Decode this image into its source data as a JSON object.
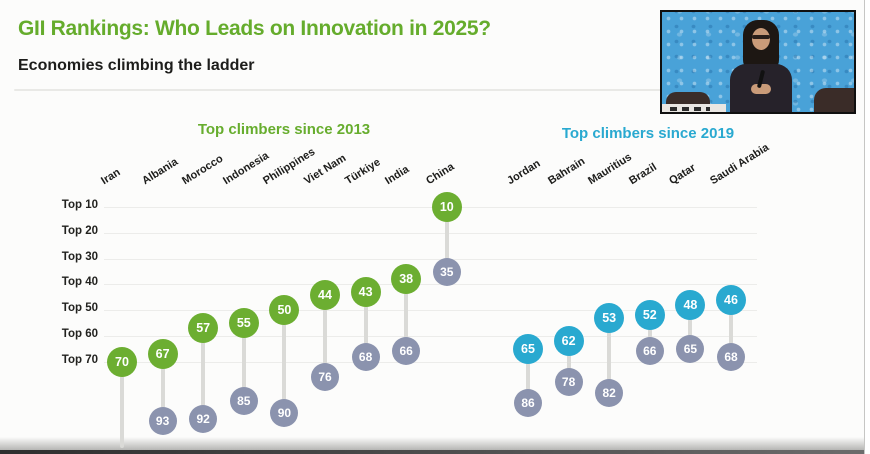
{
  "slide": {
    "title": "GII Rankings: Who Leads on Innovation in 2025?",
    "subtitle": "Economies climbing the ladder"
  },
  "colors": {
    "title_green": "#65ac2c",
    "climbers_2013_green": "#6cae31",
    "climbers_2019_cyan": "#29a9d0",
    "previous_rank_gray": "#8b93ae",
    "connector_gray": "#dadad7"
  },
  "chart_data": {
    "type": "scatter",
    "subtype": "dumbbell-dot-ranking",
    "title": "GII Rankings: Who Leads on Innovation in 2025?",
    "subtitle": "Economies climbing the ladder",
    "y_axis": {
      "tick_labels": [
        "Top 10",
        "Top 20",
        "Top 30",
        "Top 40",
        "Top 50",
        "Top 60",
        "Top 70"
      ],
      "range": [
        10,
        70
      ],
      "direction": "rank-lower-is-better",
      "grid": true
    },
    "groups": [
      {
        "id": "since2013",
        "label": "Top climbers since 2013",
        "color": "#6cae31"
      },
      {
        "id": "since2019",
        "label": "Top climbers since 2019",
        "color": "#29a9d0"
      }
    ],
    "series": [
      {
        "country": "Iran",
        "group": "since2013",
        "current_rank": 70,
        "previous_rank": null
      },
      {
        "country": "Albania",
        "group": "since2013",
        "current_rank": 67,
        "previous_rank": 93
      },
      {
        "country": "Morocco",
        "group": "since2013",
        "current_rank": 57,
        "previous_rank": 92
      },
      {
        "country": "Indonesia",
        "group": "since2013",
        "current_rank": 55,
        "previous_rank": 85
      },
      {
        "country": "Philippines",
        "group": "since2013",
        "current_rank": 50,
        "previous_rank": 90
      },
      {
        "country": "Viet Nam",
        "group": "since2013",
        "current_rank": 44,
        "previous_rank": 76
      },
      {
        "country": "Türkiye",
        "group": "since2013",
        "current_rank": 43,
        "previous_rank": 68
      },
      {
        "country": "India",
        "group": "since2013",
        "current_rank": 38,
        "previous_rank": 66
      },
      {
        "country": "China",
        "group": "since2013",
        "current_rank": 10,
        "previous_rank": 35
      },
      {
        "country": "Jordan",
        "group": "since2019",
        "current_rank": 65,
        "previous_rank": 86
      },
      {
        "country": "Bahrain",
        "group": "since2019",
        "current_rank": 62,
        "previous_rank": 78
      },
      {
        "country": "Mauritius",
        "group": "since2019",
        "current_rank": 53,
        "previous_rank": 82
      },
      {
        "country": "Brazil",
        "group": "since2019",
        "current_rank": 52,
        "previous_rank": 66
      },
      {
        "country": "Qatar",
        "group": "since2019",
        "current_rank": 48,
        "previous_rank": 65
      },
      {
        "country": "Saudi Arabia",
        "group": "since2019",
        "current_rank": 46,
        "previous_rank": 68
      }
    ]
  }
}
